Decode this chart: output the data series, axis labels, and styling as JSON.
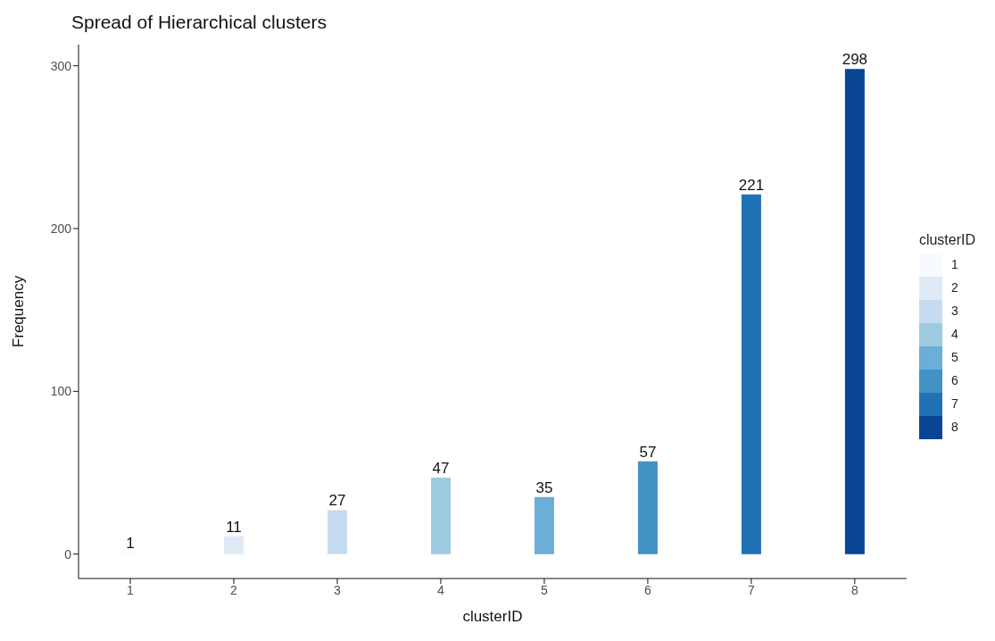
{
  "chart_data": {
    "type": "bar",
    "title": "Spread of Hierarchical clusters",
    "xlabel": "clusterID",
    "ylabel": "Frequency",
    "legend_title": "clusterID",
    "categories": [
      "1",
      "2",
      "3",
      "4",
      "5",
      "6",
      "7",
      "8"
    ],
    "stacked": true,
    "series": [
      {
        "name": "1",
        "color": "#f7fbff",
        "values": [
          1,
          null,
          null,
          null,
          null,
          null,
          null,
          null
        ]
      },
      {
        "name": "2",
        "color": "#deebf7",
        "values": [
          null,
          11,
          null,
          null,
          null,
          null,
          null,
          null
        ]
      },
      {
        "name": "3",
        "color": "#c6dbef",
        "values": [
          null,
          null,
          27,
          null,
          null,
          null,
          null,
          null
        ]
      },
      {
        "name": "4",
        "color": "#9ecae1",
        "values": [
          null,
          null,
          null,
          47,
          null,
          null,
          null,
          null
        ]
      },
      {
        "name": "5",
        "color": "#6baed6",
        "values": [
          null,
          null,
          null,
          null,
          35,
          null,
          null,
          null
        ]
      },
      {
        "name": "6",
        "color": "#4292c6",
        "values": [
          null,
          null,
          null,
          null,
          null,
          57,
          null,
          null
        ]
      },
      {
        "name": "7",
        "color": "#2171b5",
        "values": [
          null,
          null,
          null,
          null,
          null,
          null,
          221,
          null
        ]
      },
      {
        "name": "8",
        "color": "#084594",
        "values": [
          null,
          null,
          null,
          null,
          null,
          null,
          null,
          298
        ]
      }
    ],
    "ylim": [
      -15,
      313
    ],
    "yticks": [
      0,
      100,
      200,
      300
    ],
    "grid": false,
    "legend": "right",
    "data_labels": true
  }
}
